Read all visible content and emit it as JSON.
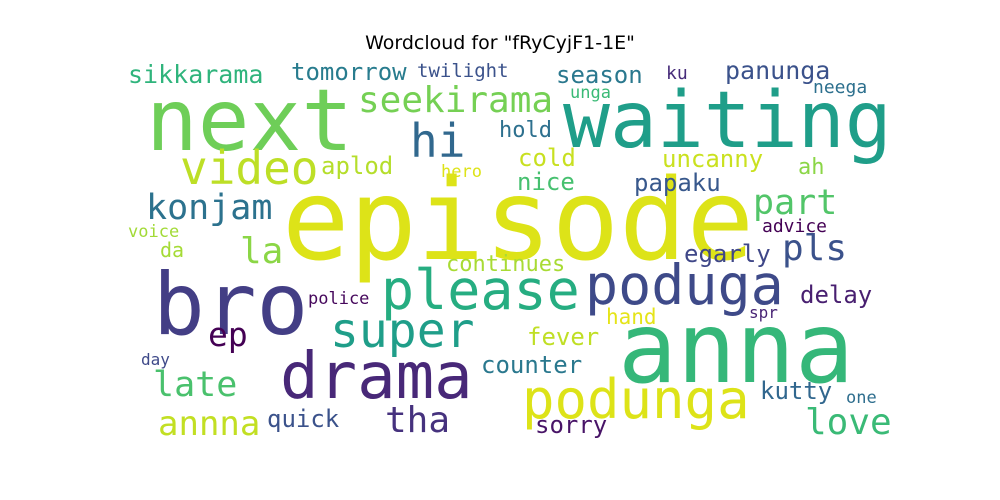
{
  "title": "Wordcloud for \"fRyCyjF1-1E\"",
  "words": [
    {
      "text": "episode",
      "color": "#dde318"
    },
    {
      "text": "waiting",
      "color": "#1f9e89"
    },
    {
      "text": "anna",
      "color": "#35b779"
    },
    {
      "text": "next",
      "color": "#6ece58"
    },
    {
      "text": "bro",
      "color": "#433e85"
    },
    {
      "text": "drama",
      "color": "#482878"
    },
    {
      "text": "please",
      "color": "#26ad81"
    },
    {
      "text": "poduga",
      "color": "#3e4a89"
    },
    {
      "text": "podunga",
      "color": "#dde318"
    },
    {
      "text": "super",
      "color": "#1f9e89"
    },
    {
      "text": "video",
      "color": "#bddf26"
    },
    {
      "text": "hi",
      "color": "#31688e"
    },
    {
      "text": "seekirama",
      "color": "#75d054"
    },
    {
      "text": "konjam",
      "color": "#2c728e"
    },
    {
      "text": "annna",
      "color": "#c2df23"
    },
    {
      "text": "part",
      "color": "#52c569"
    },
    {
      "text": "love",
      "color": "#3aba76"
    },
    {
      "text": "tha",
      "color": "#46327e"
    },
    {
      "text": "pls",
      "color": "#3b528b"
    },
    {
      "text": "late",
      "color": "#4ac16d"
    },
    {
      "text": "la",
      "color": "#8bd646"
    },
    {
      "text": "ep",
      "color": "#440154"
    },
    {
      "text": "sikkarama",
      "color": "#2fb47c"
    },
    {
      "text": "tomorrow",
      "color": "#287c8e"
    },
    {
      "text": "panunga",
      "color": "#3b528b"
    },
    {
      "text": "season",
      "color": "#2a788e"
    },
    {
      "text": "aplod",
      "color": "#b5de2b"
    },
    {
      "text": "cold",
      "color": "#c8e020"
    },
    {
      "text": "nice",
      "color": "#46c06f"
    },
    {
      "text": "uncanny",
      "color": "#cae11f"
    },
    {
      "text": "papaku",
      "color": "#38588c"
    },
    {
      "text": "delay",
      "color": "#481f70"
    },
    {
      "text": "egarly",
      "color": "#3f4788"
    },
    {
      "text": "continues",
      "color": "#a8db34"
    },
    {
      "text": "counter",
      "color": "#2a788e"
    },
    {
      "text": "fever",
      "color": "#c0df25"
    },
    {
      "text": "hand",
      "color": "#e5e419"
    },
    {
      "text": "kutty",
      "color": "#31678e"
    },
    {
      "text": "quick",
      "color": "#3b528b"
    },
    {
      "text": "sorry",
      "color": "#481467"
    },
    {
      "text": "ah",
      "color": "#8bd646"
    },
    {
      "text": "hold",
      "color": "#2d708e"
    },
    {
      "text": "twilight",
      "color": "#3b528b"
    },
    {
      "text": "ku",
      "color": "#472c7a"
    },
    {
      "text": "neega",
      "color": "#2d708e"
    },
    {
      "text": "unga",
      "color": "#3aba76"
    },
    {
      "text": "da",
      "color": "#a5db36"
    },
    {
      "text": "voice",
      "color": "#a2da37"
    },
    {
      "text": "hero",
      "color": "#dde318"
    },
    {
      "text": "advice",
      "color": "#440154"
    },
    {
      "text": "police",
      "color": "#46085c"
    },
    {
      "text": "spr",
      "color": "#482475"
    },
    {
      "text": "day",
      "color": "#3e4989"
    },
    {
      "text": "one",
      "color": "#2e6e8e"
    }
  ]
}
